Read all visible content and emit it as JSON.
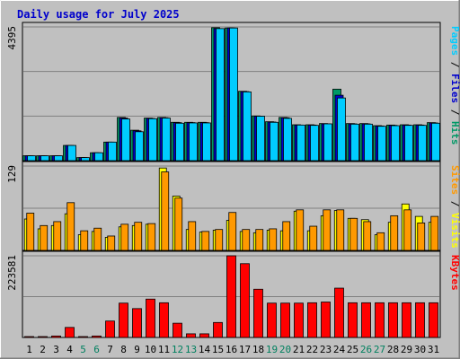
{
  "chart_data": {
    "type": "bar",
    "title": "Daily usage for July 2025",
    "days": [
      "1",
      "2",
      "3",
      "4",
      "5",
      "6",
      "7",
      "8",
      "9",
      "10",
      "11",
      "12",
      "13",
      "14",
      "15",
      "16",
      "17",
      "18",
      "19",
      "20",
      "21",
      "22",
      "23",
      "24",
      "25",
      "26",
      "27",
      "28",
      "29",
      "30",
      "31"
    ],
    "weekend_days": [
      "5",
      "6",
      "12",
      "13",
      "19",
      "20",
      "26",
      "27"
    ],
    "panels": [
      {
        "id": "hits-files-pages",
        "max_label": "4395",
        "max": 4395,
        "side_labels": [
          {
            "text": "Pages",
            "color": "#00ccff"
          },
          {
            "text": " / ",
            "color": "#000000"
          },
          {
            "text": "Files",
            "color": "#0000cc"
          },
          {
            "text": " / ",
            "color": "#000000"
          },
          {
            "text": "Hits",
            "color": "#009966"
          }
        ],
        "series": [
          {
            "name": "Hits",
            "color": "#009966",
            "values": [
              160,
              160,
              160,
              500,
              100,
              260,
              610,
              1420,
              1000,
              1400,
              1420,
              1260,
              1260,
              1260,
              4370,
              4360,
              2280,
              1470,
              1280,
              1420,
              1180,
              1180,
              1220,
              2350,
              1220,
              1220,
              1150,
              1170,
              1180,
              1180,
              1250
            ]
          },
          {
            "name": "Files",
            "color": "#0000cc",
            "values": [
              160,
              160,
              160,
              500,
              100,
              260,
              610,
              1400,
              980,
              1390,
              1410,
              1250,
              1250,
              1250,
              4340,
              4360,
              2270,
              1460,
              1270,
              1410,
              1170,
              1170,
              1210,
              2150,
              1210,
              1210,
              1140,
              1160,
              1170,
              1170,
              1240
            ]
          },
          {
            "name": "Pages",
            "color": "#00ccff",
            "values": [
              160,
              160,
              160,
              500,
              100,
              260,
              610,
              1370,
              950,
              1380,
              1400,
              1230,
              1240,
              1240,
              4340,
              4360,
              2260,
              1460,
              1260,
              1390,
              1170,
              1160,
              1210,
              2060,
              1200,
              1200,
              1130,
              1150,
              1160,
              1160,
              1230
            ]
          }
        ]
      },
      {
        "id": "visits-sites",
        "max_label": "129",
        "max": 129,
        "side_labels": [
          {
            "text": "Sites",
            "color": "#ff9900"
          },
          {
            "text": " / ",
            "color": "#000000"
          },
          {
            "text": "Visits",
            "color": "#ffff00"
          }
        ],
        "series": [
          {
            "name": "Visits",
            "color": "#ffff00",
            "values": [
              48,
              33,
              38,
              56,
              24,
              29,
              20,
              36,
              38,
              40,
              126,
              83,
              32,
              28,
              31,
              46,
              29,
              27,
              31,
              30,
              60,
              30,
              53,
              61,
              49,
              47,
              24,
              43,
              71,
              52,
              43
            ]
          },
          {
            "name": "Sites",
            "color": "#ff9900",
            "values": [
              57,
              38,
              44,
              73,
              30,
              34,
              22,
              40,
              43,
              41,
              120,
              80,
              44,
              29,
              32,
              58,
              32,
              32,
              33,
              44,
              62,
              37,
              62,
              62,
              49,
              44,
              27,
              53,
              62,
              42,
              52
            ]
          }
        ]
      },
      {
        "id": "kbytes",
        "max_label": "223581",
        "max": 223581,
        "side_labels": [
          {
            "text": "KBytes",
            "color": "#ff0000"
          }
        ],
        "series": [
          {
            "name": "KBytes",
            "color": "#ff0000",
            "values": [
              1500,
              1500,
              4000,
              27500,
              2000,
              4000,
              45000,
              94000,
              79000,
              105000,
              95000,
              39000,
              10000,
              10000,
              41000,
              223581,
              202000,
              132000,
              94000,
              94000,
              94000,
              95000,
              97000,
              135000,
              95000,
              95000,
              95000,
              95000,
              95000,
              95000,
              95000
            ]
          }
        ]
      }
    ]
  }
}
